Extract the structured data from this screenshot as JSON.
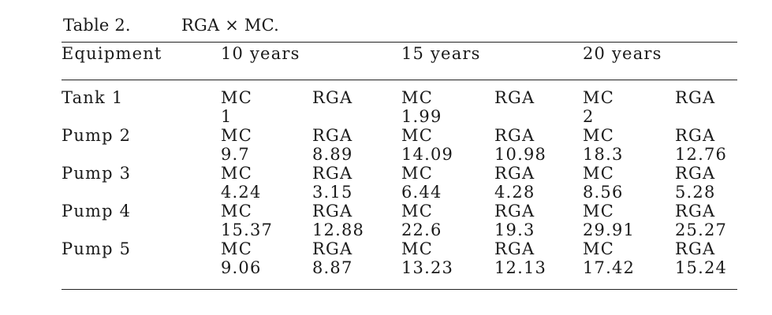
{
  "caption": {
    "label": "Table 2.",
    "title": "RGA × MC."
  },
  "header": {
    "equipment": "Equipment",
    "periods": [
      "10 years",
      "15 years",
      "20 years"
    ]
  },
  "rows": [
    {
      "equipment": "Tank 1",
      "cells": [
        {
          "kind": "MC",
          "value": "1"
        },
        {
          "kind": "RGA",
          "value": ""
        },
        {
          "kind": "MC",
          "value": "1.99"
        },
        {
          "kind": "RGA",
          "value": ""
        },
        {
          "kind": "MC",
          "value": "2"
        },
        {
          "kind": "RGA",
          "value": ""
        }
      ]
    },
    {
      "equipment": "Pump 2",
      "cells": [
        {
          "kind": "MC",
          "value": "9.7"
        },
        {
          "kind": "RGA",
          "value": "8.89"
        },
        {
          "kind": "MC",
          "value": "14.09"
        },
        {
          "kind": "RGA",
          "value": "10.98"
        },
        {
          "kind": "MC",
          "value": "18.3"
        },
        {
          "kind": "RGA",
          "value": "12.76"
        }
      ]
    },
    {
      "equipment": "Pump 3",
      "cells": [
        {
          "kind": "MC",
          "value": "4.24"
        },
        {
          "kind": "RGA",
          "value": "3.15"
        },
        {
          "kind": "MC",
          "value": "6.44"
        },
        {
          "kind": "RGA",
          "value": "4.28"
        },
        {
          "kind": "MC",
          "value": "8.56"
        },
        {
          "kind": "RGA",
          "value": "5.28"
        }
      ]
    },
    {
      "equipment": "Pump 4",
      "cells": [
        {
          "kind": "MC",
          "value": "15.37"
        },
        {
          "kind": "RGA",
          "value": "12.88"
        },
        {
          "kind": "MC",
          "value": "22.6"
        },
        {
          "kind": "RGA",
          "value": "19.3"
        },
        {
          "kind": "MC",
          "value": "29.91"
        },
        {
          "kind": "RGA",
          "value": "25.27"
        }
      ]
    },
    {
      "equipment": "Pump 5",
      "cells": [
        {
          "kind": "MC",
          "value": "9.06"
        },
        {
          "kind": "RGA",
          "value": "8.87"
        },
        {
          "kind": "MC",
          "value": "13.23"
        },
        {
          "kind": "RGA",
          "value": "12.13"
        },
        {
          "kind": "MC",
          "value": "17.42"
        },
        {
          "kind": "RGA",
          "value": "15.24"
        }
      ]
    }
  ]
}
